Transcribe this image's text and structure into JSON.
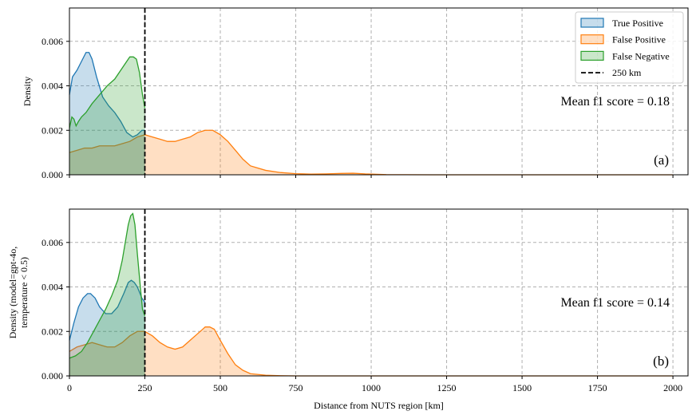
{
  "chart_data": {
    "type": "area",
    "xlabel": "Distance from NUTS region [km]",
    "xlim": [
      0,
      2050
    ],
    "x_ticks": [
      0,
      250,
      500,
      750,
      1000,
      1250,
      1500,
      1750,
      2000
    ],
    "grid": true,
    "threshold": {
      "x": 250,
      "label": "250 km"
    },
    "legend": {
      "placement": "top-right",
      "entries": [
        "True Positive",
        "False Positive",
        "False Negative",
        "250 km"
      ]
    },
    "colors": {
      "tp": "#1f77b4",
      "fp": "#ff7f0e",
      "fn": "#2ca02c",
      "threshold": "#000000",
      "grid": "#b0b0b0"
    },
    "panels": [
      {
        "id": "a",
        "letter": "(a)",
        "ylabel": [
          "Density"
        ],
        "ylim": [
          0,
          0.0075
        ],
        "y_ticks": [
          "0.000",
          "0.002",
          "0.004",
          "0.006"
        ],
        "y_tick_values": [
          0,
          0.002,
          0.004,
          0.006
        ],
        "annotation": "Mean f1 score = 0.18",
        "series": [
          {
            "name": "True Positive",
            "key": "tp",
            "x": [
              0,
              10,
              25,
              40,
              55,
              65,
              75,
              90,
              110,
              130,
              150,
              170,
              190,
              210,
              225,
              240,
              250
            ],
            "y": [
              0.0036,
              0.0044,
              0.0047,
              0.0051,
              0.0055,
              0.0055,
              0.0052,
              0.0044,
              0.0035,
              0.0031,
              0.0028,
              0.0024,
              0.0019,
              0.0017,
              0.0018,
              0.002,
              0.002
            ]
          },
          {
            "name": "False Positive",
            "key": "fp",
            "x": [
              0,
              25,
              50,
              75,
              100,
              125,
              150,
              175,
              200,
              225,
              250,
              275,
              300,
              325,
              350,
              375,
              400,
              425,
              450,
              475,
              500,
              525,
              550,
              575,
              600,
              650,
              700,
              750,
              800,
              850,
              900,
              940,
              980,
              1050,
              1200,
              1500,
              2000
            ],
            "y": [
              0.001,
              0.0011,
              0.0012,
              0.0012,
              0.0013,
              0.0013,
              0.0013,
              0.0014,
              0.0015,
              0.0017,
              0.0018,
              0.0017,
              0.0016,
              0.0015,
              0.0015,
              0.0016,
              0.0017,
              0.0019,
              0.002,
              0.002,
              0.0018,
              0.0015,
              0.0011,
              0.0007,
              0.0004,
              0.0002,
              0.0001,
              5e-05,
              3e-05,
              4e-05,
              6e-05,
              7e-05,
              4e-05,
              1e-05,
              0.0,
              0.0,
              0.0
            ]
          },
          {
            "name": "False Negative",
            "key": "fn",
            "x": [
              0,
              8,
              15,
              22,
              30,
              40,
              55,
              75,
              100,
              125,
              150,
              170,
              185,
              200,
              212,
              222,
              232,
              242,
              250
            ],
            "y": [
              0.0021,
              0.0026,
              0.0025,
              0.0022,
              0.0024,
              0.0026,
              0.0028,
              0.0032,
              0.0036,
              0.004,
              0.0043,
              0.0047,
              0.005,
              0.0053,
              0.0053,
              0.0052,
              0.0046,
              0.0036,
              0.003
            ]
          }
        ]
      },
      {
        "id": "b",
        "letter": "(b)",
        "ylabel": [
          "Density (model=gpt-4o,",
          "temperature < 0.5)"
        ],
        "ylim": [
          0,
          0.0075
        ],
        "y_ticks": [
          "0.000",
          "0.002",
          "0.004",
          "0.006"
        ],
        "y_tick_values": [
          0,
          0.002,
          0.004,
          0.006
        ],
        "annotation": "Mean f1 score = 0.14",
        "series": [
          {
            "name": "True Positive",
            "key": "tp",
            "x": [
              0,
              15,
              30,
              45,
              60,
              70,
              85,
              100,
              120,
              140,
              160,
              180,
              195,
              205,
              215,
              225,
              240,
              250
            ],
            "y": [
              0.0016,
              0.0024,
              0.0031,
              0.0035,
              0.0037,
              0.0037,
              0.0035,
              0.0031,
              0.0028,
              0.0028,
              0.0031,
              0.0037,
              0.0042,
              0.0043,
              0.0042,
              0.004,
              0.0035,
              0.0033
            ]
          },
          {
            "name": "False Positive",
            "key": "fp",
            "x": [
              0,
              25,
              50,
              75,
              100,
              125,
              150,
              175,
              200,
              225,
              250,
              275,
              300,
              325,
              350,
              375,
              400,
              425,
              450,
              465,
              480,
              500,
              525,
              550,
              575,
              600,
              650,
              700,
              750,
              800,
              900,
              1000,
              1250,
              1500,
              2000
            ],
            "y": [
              0.0011,
              0.0013,
              0.0014,
              0.0015,
              0.0014,
              0.0013,
              0.0013,
              0.0015,
              0.0018,
              0.002,
              0.002,
              0.0018,
              0.0015,
              0.0013,
              0.0012,
              0.0013,
              0.0016,
              0.0019,
              0.0022,
              0.0022,
              0.0021,
              0.0016,
              0.001,
              0.0005,
              0.00025,
              0.0001,
              3e-05,
              1e-05,
              0.0,
              0.0,
              0.0,
              0.0,
              0.0,
              0.0,
              0.0
            ]
          },
          {
            "name": "False Negative",
            "key": "fn",
            "x": [
              0,
              20,
              40,
              60,
              80,
              100,
              120,
              140,
              160,
              175,
              185,
              195,
              203,
              210,
              217,
              225,
              235,
              242,
              250
            ],
            "y": [
              0.0008,
              0.0009,
              0.0011,
              0.0015,
              0.002,
              0.0025,
              0.003,
              0.0036,
              0.0043,
              0.0052,
              0.006,
              0.0068,
              0.0072,
              0.0073,
              0.0068,
              0.0055,
              0.004,
              0.003,
              0.0027
            ]
          }
        ]
      }
    ]
  }
}
